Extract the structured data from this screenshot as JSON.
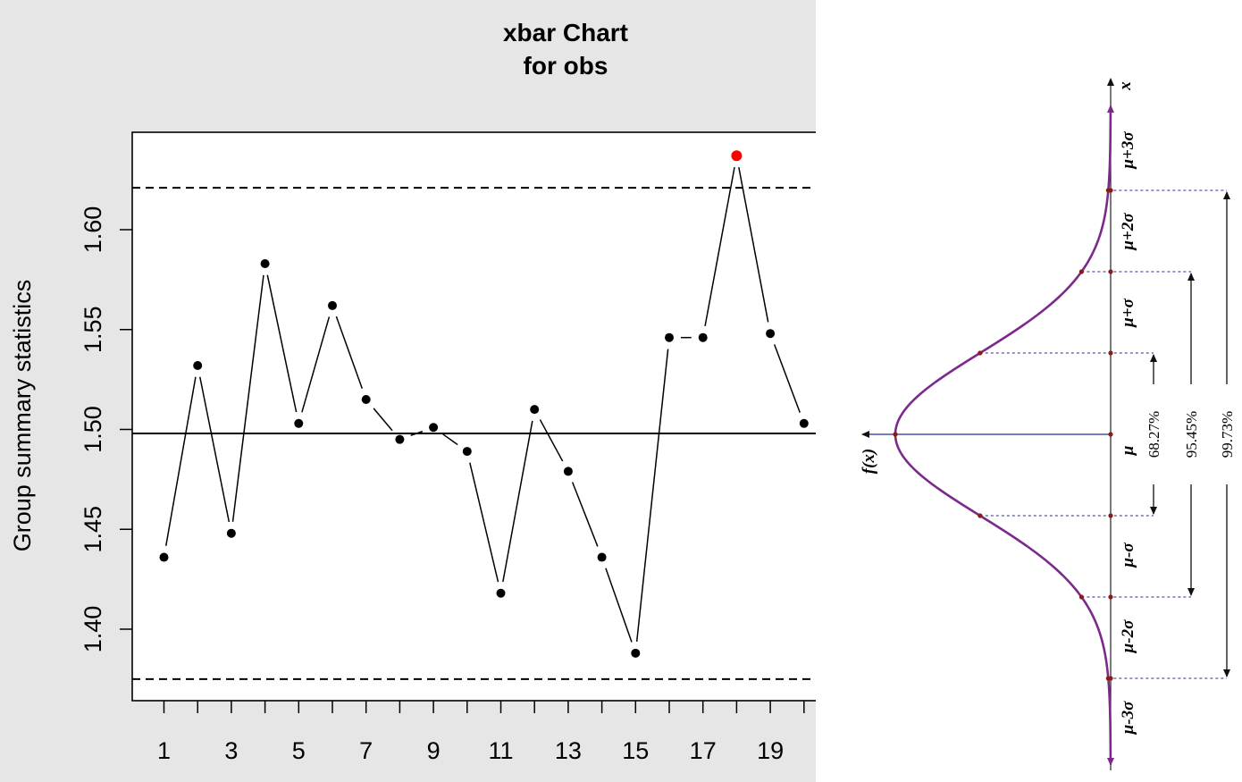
{
  "chart_data": [
    {
      "type": "line",
      "title": "xbar Chart\nfor obs",
      "title_lines": [
        "xbar Chart",
        "for obs"
      ],
      "xlabel": "",
      "ylabel": "Group summary statistics",
      "x_ticks": [
        "1",
        "3",
        "5",
        "7",
        "9",
        "11",
        "13",
        "15",
        "17",
        "19"
      ],
      "y_ticks": [
        "1.40",
        "1.45",
        "1.50",
        "1.55",
        "1.60"
      ],
      "ylim": [
        1.37,
        1.645
      ],
      "x": [
        1,
        2,
        3,
        4,
        5,
        6,
        7,
        8,
        9,
        10,
        11,
        12,
        13,
        14,
        15,
        16,
        17,
        18,
        19,
        20
      ],
      "values": [
        1.436,
        1.532,
        1.448,
        1.583,
        1.503,
        1.562,
        1.515,
        1.495,
        1.501,
        1.489,
        1.418,
        1.51,
        1.479,
        1.436,
        1.388,
        1.546,
        1.546,
        1.637,
        1.548,
        1.503
      ],
      "center_line": 1.498,
      "upper_control_limit": 1.621,
      "lower_control_limit": 1.375,
      "out_of_control_color": "#ff0000",
      "point_color": "#000000",
      "background_color": "#e6e6e6"
    },
    {
      "type": "line",
      "description_kind": "normal distribution curve rotated",
      "axis_labels": {
        "x": "x",
        "f": "f(x)"
      },
      "level_labels": [
        "μ+3σ",
        "μ+2σ",
        "μ+σ",
        "μ",
        "μ-σ",
        "μ-2σ",
        "μ-3σ"
      ],
      "level_sigmas": [
        3,
        2,
        1,
        0,
        -1,
        -2,
        -3
      ],
      "intervals": [
        {
          "label": "68.27%",
          "sigma": 1
        },
        {
          "label": "95.45%",
          "sigma": 2
        },
        {
          "label": "99.73%",
          "sigma": 3
        }
      ],
      "curve_color": "#7b2a8c",
      "guide_color": "#2a2a9a"
    }
  ]
}
